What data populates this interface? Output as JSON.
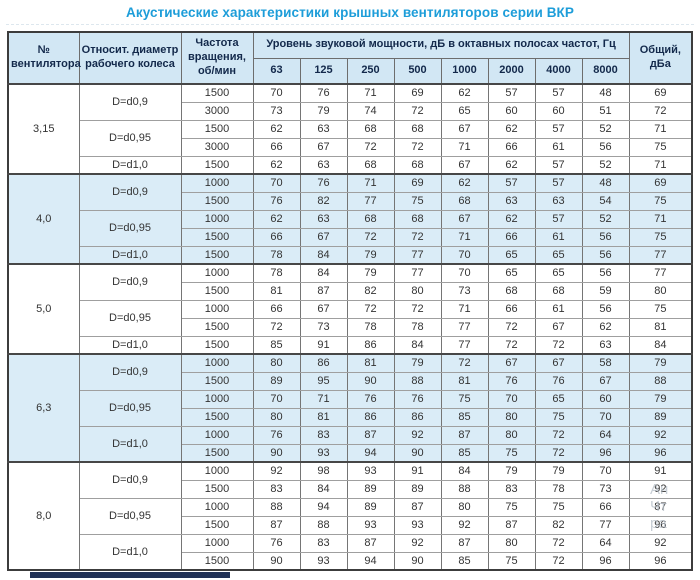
{
  "title": "Акустические характеристики крышных вентиляторов серии ВКР",
  "colors": {
    "accent": "#1d9dd9",
    "header_bg": "#d2e7f4",
    "row_blue": "#daecf7",
    "header_text": "#13294b",
    "border_dark": "#3c3c3c",
    "navy_bar": "#203055"
  },
  "watermark": {
    "lines": [
      "Ан",
      "Чт",
      "ра"
    ]
  },
  "table": {
    "headers": {
      "fan_no": "№ вентилятора",
      "diameter": "Относит. диаметр рабочего колеса",
      "rpm": "Частота вращения, об/мин",
      "spl_group": "Уровень звуковой мощности, дБ в октавных полосах частот, Гц",
      "freqs": [
        "63",
        "125",
        "250",
        "500",
        "1000",
        "2000",
        "4000",
        "8000"
      ],
      "total": "Общий, дБа"
    },
    "groups": [
      {
        "no": "3,15",
        "shade": "white",
        "variants": [
          {
            "d": "D=d0,9",
            "rows": [
              {
                "rpm": "1500",
                "v": [
                  70,
                  76,
                  71,
                  69,
                  62,
                  57,
                  57,
                  48
                ],
                "total": 69
              },
              {
                "rpm": "3000",
                "v": [
                  73,
                  79,
                  74,
                  72,
                  65,
                  60,
                  60,
                  51
                ],
                "total": 72
              }
            ]
          },
          {
            "d": "D=d0,95",
            "rows": [
              {
                "rpm": "1500",
                "v": [
                  62,
                  63,
                  68,
                  68,
                  67,
                  62,
                  57,
                  52
                ],
                "total": 71
              },
              {
                "rpm": "3000",
                "v": [
                  66,
                  67,
                  72,
                  72,
                  71,
                  66,
                  61,
                  56
                ],
                "total": 75
              }
            ]
          },
          {
            "d": "D=d1,0",
            "rows": [
              {
                "rpm": "1500",
                "v": [
                  62,
                  63,
                  68,
                  68,
                  67,
                  62,
                  57,
                  52
                ],
                "total": 71
              }
            ]
          }
        ]
      },
      {
        "no": "4,0",
        "shade": "blue",
        "variants": [
          {
            "d": "D=d0,9",
            "rows": [
              {
                "rpm": "1000",
                "v": [
                  70,
                  76,
                  71,
                  69,
                  62,
                  57,
                  57,
                  48
                ],
                "total": 69
              },
              {
                "rpm": "1500",
                "v": [
                  76,
                  82,
                  77,
                  75,
                  68,
                  63,
                  63,
                  54
                ],
                "total": 75
              }
            ]
          },
          {
            "d": "D=d0,95",
            "rows": [
              {
                "rpm": "1000",
                "v": [
                  62,
                  63,
                  68,
                  68,
                  67,
                  62,
                  57,
                  52
                ],
                "total": 71
              },
              {
                "rpm": "1500",
                "v": [
                  66,
                  67,
                  72,
                  72,
                  71,
                  66,
                  61,
                  56
                ],
                "total": 75
              }
            ]
          },
          {
            "d": "D=d1,0",
            "rows": [
              {
                "rpm": "1500",
                "v": [
                  78,
                  84,
                  79,
                  77,
                  70,
                  65,
                  65,
                  56
                ],
                "total": 77
              }
            ]
          }
        ]
      },
      {
        "no": "5,0",
        "shade": "white",
        "variants": [
          {
            "d": "D=d0,9",
            "rows": [
              {
                "rpm": "1000",
                "v": [
                  78,
                  84,
                  79,
                  77,
                  70,
                  65,
                  65,
                  56
                ],
                "total": 77
              },
              {
                "rpm": "1500",
                "v": [
                  81,
                  87,
                  82,
                  80,
                  73,
                  68,
                  68,
                  59
                ],
                "total": 80
              }
            ]
          },
          {
            "d": "D=d0,95",
            "rows": [
              {
                "rpm": "1000",
                "v": [
                  66,
                  67,
                  72,
                  72,
                  71,
                  66,
                  61,
                  56
                ],
                "total": 75
              },
              {
                "rpm": "1500",
                "v": [
                  72,
                  73,
                  78,
                  78,
                  77,
                  72,
                  67,
                  62
                ],
                "total": 81
              }
            ]
          },
          {
            "d": "D=d1,0",
            "rows": [
              {
                "rpm": "1500",
                "v": [
                  85,
                  91,
                  86,
                  84,
                  77,
                  72,
                  72,
                  63
                ],
                "total": 84
              }
            ]
          }
        ]
      },
      {
        "no": "6,3",
        "shade": "blue",
        "variants": [
          {
            "d": "D=d0,9",
            "rows": [
              {
                "rpm": "1000",
                "v": [
                  80,
                  86,
                  81,
                  79,
                  72,
                  67,
                  67,
                  58
                ],
                "total": 79
              },
              {
                "rpm": "1500",
                "v": [
                  89,
                  95,
                  90,
                  88,
                  81,
                  76,
                  76,
                  67
                ],
                "total": 88
              }
            ]
          },
          {
            "d": "D=d0,95",
            "rows": [
              {
                "rpm": "1000",
                "v": [
                  70,
                  71,
                  76,
                  76,
                  75,
                  70,
                  65,
                  60
                ],
                "total": 79
              },
              {
                "rpm": "1500",
                "v": [
                  80,
                  81,
                  86,
                  86,
                  85,
                  80,
                  75,
                  70
                ],
                "total": 89
              }
            ]
          },
          {
            "d": "D=d1,0",
            "rows": [
              {
                "rpm": "1000",
                "v": [
                  76,
                  83,
                  87,
                  92,
                  87,
                  80,
                  72,
                  64
                ],
                "total": 92
              },
              {
                "rpm": "1500",
                "v": [
                  90,
                  93,
                  94,
                  90,
                  85,
                  75,
                  72,
                  96
                ],
                "total": 96
              }
            ]
          }
        ]
      },
      {
        "no": "8,0",
        "shade": "white",
        "variants": [
          {
            "d": "D=d0,9",
            "rows": [
              {
                "rpm": "1000",
                "v": [
                  92,
                  98,
                  93,
                  91,
                  84,
                  79,
                  79,
                  70
                ],
                "total": 91
              },
              {
                "rpm": "1500",
                "v": [
                  83,
                  84,
                  89,
                  89,
                  88,
                  83,
                  78,
                  73
                ],
                "total": 92
              }
            ]
          },
          {
            "d": "D=d0,95",
            "rows": [
              {
                "rpm": "1000",
                "v": [
                  88,
                  94,
                  89,
                  87,
                  80,
                  75,
                  75,
                  66
                ],
                "total": 87
              },
              {
                "rpm": "1500",
                "v": [
                  87,
                  88,
                  93,
                  93,
                  92,
                  87,
                  82,
                  77
                ],
                "total": 96
              }
            ]
          },
          {
            "d": "D=d1,0",
            "rows": [
              {
                "rpm": "1000",
                "v": [
                  76,
                  83,
                  87,
                  92,
                  87,
                  80,
                  72,
                  64
                ],
                "total": 92
              },
              {
                "rpm": "1500",
                "v": [
                  90,
                  93,
                  94,
                  90,
                  85,
                  75,
                  72,
                  96
                ],
                "total": 96
              }
            ]
          }
        ]
      }
    ]
  }
}
